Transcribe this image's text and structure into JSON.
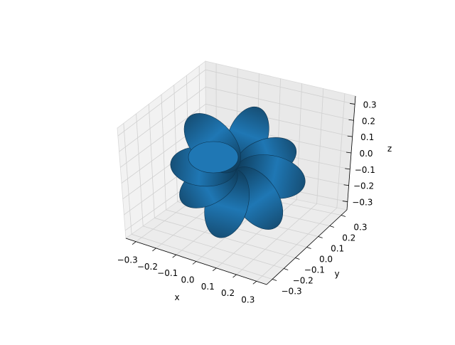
{
  "chart_data": {
    "type": "surface3d",
    "title": "",
    "xlabel": "x",
    "ylabel": "y",
    "zlabel": "z",
    "xlim": [
      -0.35,
      0.35
    ],
    "ylim": [
      -0.35,
      0.35
    ],
    "zlim": [
      -0.35,
      0.35
    ],
    "x_ticks": [
      "−0.3",
      "−0.2",
      "−0.1",
      "0.0",
      "0.1",
      "0.2",
      "0.3"
    ],
    "y_ticks": [
      "−0.3",
      "−0.2",
      "−0.1",
      "0.0",
      "0.1",
      "0.2",
      "0.3"
    ],
    "z_ticks": [
      "0.3",
      "0.2",
      "0.1",
      "0.0",
      "−0.1",
      "−0.2",
      "−0.3"
    ],
    "x_tick_values": [
      -0.3,
      -0.2,
      -0.1,
      0.0,
      0.1,
      0.2,
      0.3
    ],
    "y_tick_values": [
      -0.3,
      -0.2,
      -0.1,
      0.0,
      0.1,
      0.2,
      0.3
    ],
    "z_tick_values": [
      0.3,
      0.2,
      0.1,
      0.0,
      -0.1,
      -0.2,
      -0.3
    ],
    "grid": true,
    "surface_color": "#1f77b4",
    "pane_color": "#f2f2f2",
    "view": {
      "elev": 30,
      "azim": -60
    },
    "lobes": [
      {
        "name": "upper-right-lobe",
        "angle": -70,
        "length": 0.28
      },
      {
        "name": "right-upper-lobe",
        "angle": -20,
        "length": 0.27
      },
      {
        "name": "right-lower-lobe",
        "angle": 12,
        "length": 0.3
      },
      {
        "name": "lower-right-lobe",
        "angle": 55,
        "length": 0.3
      },
      {
        "name": "lower-left-lobe",
        "angle": 105,
        "length": 0.3
      },
      {
        "name": "left-lower-lobe",
        "angle": 150,
        "length": 0.27
      },
      {
        "name": "left-upper-lobe",
        "angle": 185,
        "length": 0.28
      },
      {
        "name": "upper-left-lobe",
        "angle": 228,
        "length": 0.3
      }
    ]
  }
}
